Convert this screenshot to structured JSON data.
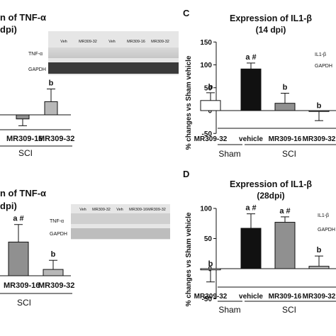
{
  "chart_data": [
    {
      "id": "topleft",
      "type": "bar",
      "title_lines": [
        "n of TNF-α",
        "dpi)"
      ],
      "categories": [
        "MR309-16",
        "MR309-32"
      ],
      "values": [
        -9,
        29
      ],
      "errors": [
        15,
        28
      ],
      "colors": [
        "#909090",
        "#b8b8b8"
      ],
      "annotations": [
        "",
        "b"
      ],
      "group_label": "SCI",
      "blot": {
        "lane_labels": [
          "Veh",
          "MR309-32",
          "Veh",
          "MR309-16",
          "MR309-32"
        ],
        "row_labels": [
          "TNF-α",
          "GAPDH"
        ]
      }
    },
    {
      "id": "panelC",
      "type": "bar",
      "panel_letter": "C",
      "title_lines": [
        "Expression of IL1-β",
        "(14 dpi)"
      ],
      "ylabel": "% changes vs Sham vehicle",
      "ylim": [
        -50,
        150
      ],
      "yticks": [
        -50,
        0,
        50,
        100,
        150
      ],
      "categories": [
        "MR309-32",
        "vehicle",
        "MR309-16",
        "MR309-32"
      ],
      "values": [
        22,
        91,
        16,
        -2
      ],
      "errors": [
        17,
        13,
        22,
        20
      ],
      "colors": [
        "#ffffff",
        "#111111",
        "#909090",
        "#b8b8b8"
      ],
      "annotations": [
        "b",
        "a #",
        "b",
        "b"
      ],
      "groups": [
        {
          "label": "Sham",
          "span": [
            0,
            0
          ]
        },
        {
          "label": "SCI",
          "span": [
            1,
            3
          ]
        }
      ],
      "blot": {
        "lane_labels": [],
        "row_labels": [
          "IL1-β",
          "GAPDH"
        ]
      }
    },
    {
      "id": "bottomleft",
      "type": "bar",
      "title_lines": [
        "n of TNF-α",
        "dpi)"
      ],
      "categories": [
        "MR309-16",
        "MR309-32"
      ],
      "values": [
        48,
        9
      ],
      "errors": [
        25,
        13
      ],
      "colors": [
        "#909090",
        "#b8b8b8"
      ],
      "annotations": [
        "a #",
        "b"
      ],
      "group_label": "SCI",
      "blot": {
        "lane_labels": [
          "Veh",
          "MR309-32",
          "Veh",
          "MR309-16",
          "MR309-32"
        ],
        "row_labels": [
          "TNF-α",
          "GAPDH"
        ]
      }
    },
    {
      "id": "panelD",
      "type": "bar",
      "panel_letter": "D",
      "title_lines": [
        "Expression of IL1-β",
        "(28dpi)"
      ],
      "ylabel": "% changes vs Sham vehicle",
      "ylim": [
        -50,
        100
      ],
      "yticks": [
        -50,
        0,
        50,
        100
      ],
      "categories": [
        "MR309-32",
        "vehicle",
        "MR309-16",
        "MR309-32"
      ],
      "values": [
        -2,
        67,
        77,
        4
      ],
      "errors": [
        20,
        24,
        9,
        17
      ],
      "colors": [
        "#ffffff",
        "#111111",
        "#909090",
        "#b8b8b8"
      ],
      "annotations": [
        "b",
        "a #",
        "a #",
        "b"
      ],
      "groups": [
        {
          "label": "Sham",
          "span": [
            0,
            0
          ]
        },
        {
          "label": "SCI",
          "span": [
            1,
            3
          ]
        }
      ],
      "blot": {
        "lane_labels": [],
        "row_labels": [
          "IL1-β",
          "GAPDH"
        ]
      }
    }
  ]
}
